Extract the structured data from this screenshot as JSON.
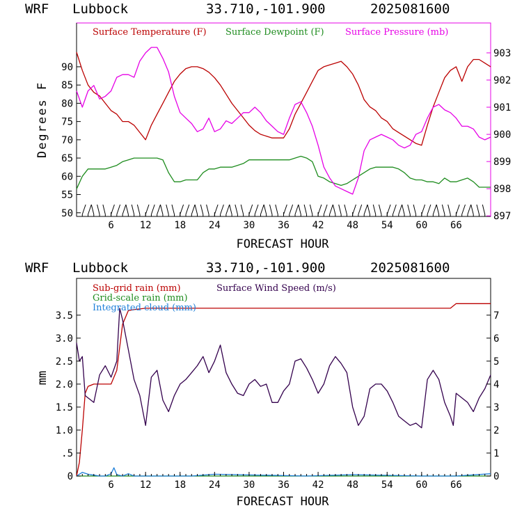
{
  "header1": {
    "model": "WRF",
    "site": "Lubbock",
    "coords": "33.710,-101.900",
    "date": "2025081600"
  },
  "header2": {
    "model": "WRF",
    "site": "Lubbock",
    "coords": "33.710,-101.900",
    "date": "2025081600"
  },
  "colors": {
    "temp": "#bb0000",
    "dew": "#1e8c1e",
    "pres": "#e600e6",
    "subgrid": "#bb0000",
    "gridscale": "#1e8c1e",
    "cloud": "#1e7fd9",
    "wind": "#33004d"
  },
  "chart_data": [
    {
      "type": "line",
      "title": "",
      "xlabel": "FORECAST HOUR",
      "ylabel": "Degrees F",
      "xlim": [
        0,
        72
      ],
      "ylim": [
        49,
        102
      ],
      "y2lim": [
        896.98,
        904.1
      ],
      "xticks": [
        6,
        12,
        18,
        24,
        30,
        36,
        42,
        48,
        54,
        60,
        66
      ],
      "xtick_labels": [
        "6",
        "12",
        "18",
        "24",
        "30",
        "36",
        "42",
        "48",
        "54",
        "60",
        "66"
      ],
      "yticks": [
        50,
        55,
        60,
        65,
        70,
        75,
        80,
        85,
        90
      ],
      "ytick_labels": [
        "50",
        "55",
        "60",
        "65",
        "70",
        "75",
        "80",
        "85",
        "90"
      ],
      "y2ticks": [
        897,
        898,
        899,
        900,
        901,
        902,
        903
      ],
      "y2tick_labels": [
        "897",
        "898",
        "899",
        "900",
        "901",
        "902",
        "903"
      ],
      "legend": [
        "Surface Temperature (F)",
        "Surface Dewpoint (F)",
        "Surface Pressure (mb)"
      ],
      "series": [
        {
          "name": "Surface Temperature (F)",
          "axis": "left",
          "x": [
            0,
            1,
            2,
            3,
            4,
            5,
            6,
            7,
            8,
            9,
            10,
            11,
            12,
            13,
            14,
            15,
            16,
            17,
            18,
            19,
            20,
            21,
            22,
            23,
            24,
            25,
            26,
            27,
            28,
            29,
            30,
            31,
            32,
            33,
            34,
            35,
            36,
            37,
            38,
            39,
            40,
            41,
            42,
            43,
            44,
            45,
            46,
            47,
            48,
            49,
            50,
            51,
            52,
            53,
            54,
            55,
            56,
            57,
            58,
            59,
            60,
            61,
            62,
            63,
            64,
            65,
            66,
            67,
            68,
            69,
            70,
            71,
            72
          ],
          "y": [
            94,
            89,
            85,
            83,
            82,
            80,
            78,
            77,
            75,
            75,
            74,
            72,
            70,
            74,
            77,
            80,
            83,
            86,
            88,
            89.5,
            90,
            90,
            89.5,
            88.5,
            87,
            85,
            82.5,
            80,
            78,
            76,
            74,
            72.5,
            71.5,
            71,
            70.5,
            70.5,
            70.5,
            73,
            77,
            80,
            83,
            86,
            89,
            90,
            90.5,
            91,
            91.5,
            90,
            88,
            85,
            81,
            79,
            78,
            76,
            75,
            73,
            72,
            71,
            70,
            69,
            68.5,
            74,
            79,
            83,
            87,
            89,
            90,
            86,
            90,
            92,
            92,
            91,
            90
          ]
        },
        {
          "name": "Surface Dewpoint (F)",
          "axis": "left",
          "x": [
            0,
            1,
            2,
            3,
            4,
            5,
            6,
            7,
            8,
            9,
            10,
            11,
            12,
            13,
            14,
            15,
            16,
            17,
            18,
            19,
            20,
            21,
            22,
            23,
            24,
            25,
            26,
            27,
            28,
            29,
            30,
            31,
            32,
            33,
            34,
            35,
            36,
            37,
            38,
            39,
            40,
            41,
            42,
            43,
            44,
            45,
            46,
            47,
            48,
            49,
            50,
            51,
            52,
            53,
            54,
            55,
            56,
            57,
            58,
            59,
            60,
            61,
            62,
            63,
            64,
            65,
            66,
            67,
            68,
            69,
            70,
            71,
            72
          ],
          "y": [
            56.5,
            60,
            62,
            62,
            62,
            62,
            62.5,
            63,
            64,
            64.5,
            65,
            65,
            65,
            65,
            65,
            64.5,
            61,
            58.5,
            58.5,
            59,
            59,
            59,
            61,
            62,
            62,
            62.5,
            62.5,
            62.5,
            63,
            63.5,
            64.5,
            64.5,
            64.5,
            64.5,
            64.5,
            64.5,
            64.5,
            64.5,
            65,
            65.5,
            65,
            64,
            60,
            59.5,
            58.5,
            58,
            57.5,
            58,
            59,
            60,
            61,
            62,
            62.5,
            62.5,
            62.5,
            62.5,
            62,
            61,
            59.5,
            59,
            59,
            58.5,
            58.5,
            58,
            59.5,
            58.5,
            58.5,
            59,
            59.5,
            58.5,
            57,
            57,
            57
          ]
        },
        {
          "name": "Surface Pressure (mb)",
          "axis": "right",
          "x": [
            0,
            1,
            2,
            3,
            4,
            5,
            6,
            7,
            8,
            9,
            10,
            11,
            12,
            13,
            14,
            15,
            16,
            17,
            18,
            19,
            20,
            21,
            22,
            23,
            24,
            25,
            26,
            27,
            28,
            29,
            30,
            31,
            32,
            33,
            34,
            35,
            36,
            37,
            38,
            39,
            40,
            41,
            42,
            43,
            44,
            45,
            46,
            47,
            48,
            49,
            50,
            51,
            52,
            53,
            54,
            55,
            56,
            57,
            58,
            59,
            60,
            61,
            62,
            63,
            64,
            65,
            66,
            67,
            68,
            69,
            70,
            71,
            72
          ],
          "y": [
            901.6,
            901,
            901.6,
            901.8,
            901.3,
            901.4,
            901.6,
            902.1,
            902.2,
            902.2,
            902.1,
            902.7,
            903.0,
            903.2,
            903.2,
            902.8,
            902.3,
            901.4,
            900.8,
            900.6,
            900.4,
            900.1,
            900.2,
            900.6,
            900.1,
            900.2,
            900.5,
            900.4,
            900.6,
            900.8,
            900.8,
            901.0,
            900.8,
            900.5,
            900.3,
            900.1,
            900.0,
            900.6,
            901.1,
            901.2,
            900.8,
            900.3,
            899.6,
            898.8,
            898.4,
            898.1,
            898.0,
            897.9,
            897.8,
            898.4,
            899.4,
            899.8,
            899.9,
            900.0,
            899.9,
            899.8,
            899.6,
            899.5,
            899.6,
            900.0,
            900.1,
            900.6,
            901.0,
            901.1,
            900.9,
            900.8,
            900.6,
            900.3,
            900.3,
            900.2,
            899.9,
            899.8,
            899.9
          ]
        }
      ]
    },
    {
      "type": "line",
      "title": "",
      "xlabel": "FORECAST HOUR",
      "ylabel": "mm",
      "xlim": [
        0,
        72
      ],
      "ylim": [
        0,
        4.3
      ],
      "y2lim": [
        0,
        8.6
      ],
      "xticks": [
        6,
        12,
        18,
        24,
        30,
        36,
        42,
        48,
        54,
        60,
        66
      ],
      "xtick_labels": [
        "6",
        "12",
        "18",
        "24",
        "30",
        "36",
        "42",
        "48",
        "54",
        "60",
        "66"
      ],
      "yticks": [
        0,
        0.5,
        1.0,
        1.5,
        2.0,
        2.5,
        3.0,
        3.5
      ],
      "ytick_labels": [
        "0",
        ".5",
        "1.0",
        "1.5",
        "2.0",
        "2.5",
        "3.0",
        "3.5"
      ],
      "y2ticks": [
        0,
        1,
        2,
        3,
        4,
        5,
        6,
        7
      ],
      "y2tick_labels": [
        "0",
        "1",
        "2",
        "3",
        "4",
        "5",
        "6",
        "7"
      ],
      "legend": [
        "Sub-grid rain (mm)",
        "Surface Wind Speed (m/s)",
        "Grid-scale rain (mm)",
        "Integrated cloud (mm)"
      ],
      "series": [
        {
          "name": "Sub-grid rain (mm)",
          "axis": "left",
          "x": [
            0,
            0.5,
            1,
            1.5,
            2,
            3,
            4,
            5,
            6,
            7,
            8,
            9,
            10,
            12,
            14,
            20,
            30,
            40,
            50,
            60,
            65,
            66,
            67,
            72
          ],
          "y": [
            0,
            0.3,
            1.0,
            1.8,
            1.95,
            2.0,
            2.0,
            2.0,
            2.0,
            2.3,
            3.3,
            3.6,
            3.62,
            3.65,
            3.65,
            3.65,
            3.65,
            3.65,
            3.65,
            3.65,
            3.65,
            3.75,
            3.75,
            3.75
          ]
        },
        {
          "name": "Grid-scale rain (mm)",
          "axis": "left",
          "x": [
            0,
            72
          ],
          "y": [
            0,
            0
          ]
        },
        {
          "name": "Integrated cloud (mm)",
          "axis": "left",
          "x": [
            0,
            1,
            2,
            3,
            4,
            5,
            6,
            6.5,
            7,
            8,
            9,
            10,
            20,
            24,
            40,
            48,
            60,
            66,
            72
          ],
          "y": [
            0,
            0.08,
            0.04,
            0.02,
            0,
            0,
            0.05,
            0.18,
            0.03,
            0,
            0.05,
            0,
            0,
            0.04,
            0,
            0.03,
            0,
            0,
            0.05
          ]
        },
        {
          "name": "Surface Wind Speed (m/s)",
          "axis": "right",
          "x": [
            0,
            0.5,
            1,
            1.5,
            2,
            3,
            4,
            5,
            6,
            7,
            7.5,
            8,
            9,
            10,
            11,
            12,
            13,
            14,
            15,
            16,
            17,
            18,
            19,
            20,
            21,
            22,
            23,
            24,
            25,
            26,
            27,
            28,
            29,
            30,
            31,
            32,
            33,
            34,
            35,
            36,
            37,
            38,
            39,
            40,
            41,
            42,
            43,
            44,
            45,
            46,
            47,
            48,
            49,
            50,
            51,
            52,
            53,
            54,
            55,
            56,
            57,
            58,
            59,
            60,
            61,
            62,
            63,
            64,
            65,
            65.5,
            66,
            67,
            68,
            69,
            70,
            71,
            72
          ],
          "y": [
            5.8,
            5,
            5.2,
            3.5,
            3.4,
            3.2,
            4.4,
            4.8,
            4.3,
            5.0,
            7.3,
            6.8,
            5.5,
            4.2,
            3.5,
            2.2,
            4.3,
            4.6,
            3.3,
            2.8,
            3.5,
            4.0,
            4.2,
            4.5,
            4.8,
            5.2,
            4.5,
            5.0,
            5.7,
            4.5,
            4.0,
            3.6,
            3.5,
            4.0,
            4.2,
            3.9,
            4.0,
            3.2,
            3.2,
            3.7,
            4.0,
            5.0,
            5.1,
            4.7,
            4.2,
            3.6,
            4.0,
            4.8,
            5.2,
            4.9,
            4.5,
            3.0,
            2.2,
            2.6,
            3.8,
            4.0,
            4.0,
            3.7,
            3.2,
            2.6,
            2.4,
            2.2,
            2.3,
            2.1,
            4.2,
            4.6,
            4.2,
            3.2,
            2.6,
            2.2,
            3.6,
            3.4,
            3.2,
            2.8,
            3.4,
            3.8,
            4.4
          ]
        }
      ]
    }
  ]
}
